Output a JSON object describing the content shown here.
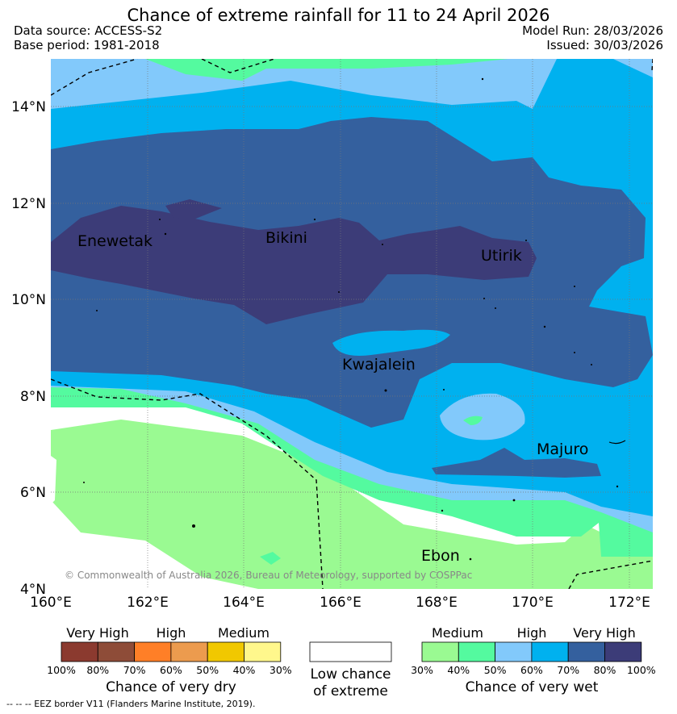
{
  "header": {
    "title": "Chance of extreme rainfall for 11 to 24 April 2026",
    "data_source": "Data source: ACCESS-S2",
    "base_period": "Base period: 1981-2018",
    "model_run": "Model Run: 28/03/2026",
    "issued": "Issued: 30/03/2026"
  },
  "map": {
    "lat_labels": [
      "14°N",
      "12°N",
      "10°N",
      "8°N",
      "6°N",
      "4°N"
    ],
    "lon_labels": [
      "160°E",
      "162°E",
      "164°E",
      "166°E",
      "168°E",
      "170°E",
      "172°E"
    ],
    "places": [
      "Enewetak",
      "Bikini",
      "Utirik",
      "Kwajalein",
      "Majuro",
      "Ebon"
    ],
    "copyright": "© Commonwealth of Australia 2026, Bureau of Meteorology, supported by COSPPac"
  },
  "legend": {
    "dry": {
      "groups": [
        "Very High",
        "High",
        "Medium"
      ],
      "colors": [
        "#8b3a2f",
        "#8e4c38",
        "#ff7f27",
        "#ec9b4e",
        "#f1c800",
        "#fff78c"
      ],
      "ticks": [
        "100%",
        "80%",
        "70%",
        "60%",
        "50%",
        "40%",
        "30%"
      ],
      "title": "Chance of very dry"
    },
    "low": {
      "title": "Low chance of extreme"
    },
    "wet": {
      "groups": [
        "Medium",
        "High",
        "Very High"
      ],
      "colors": [
        "#9afa92",
        "#54fa9f",
        "#82c9fb",
        "#00b1ef",
        "#34609e",
        "#3c3c78"
      ],
      "ticks": [
        "30%",
        "40%",
        "50%",
        "60%",
        "70%",
        "80%",
        "100%"
      ],
      "title": "Chance of very wet"
    }
  },
  "footer": {
    "eez_note": "-- -- -- EEZ border V11 (Flanders Marine Institute, 2019)."
  }
}
